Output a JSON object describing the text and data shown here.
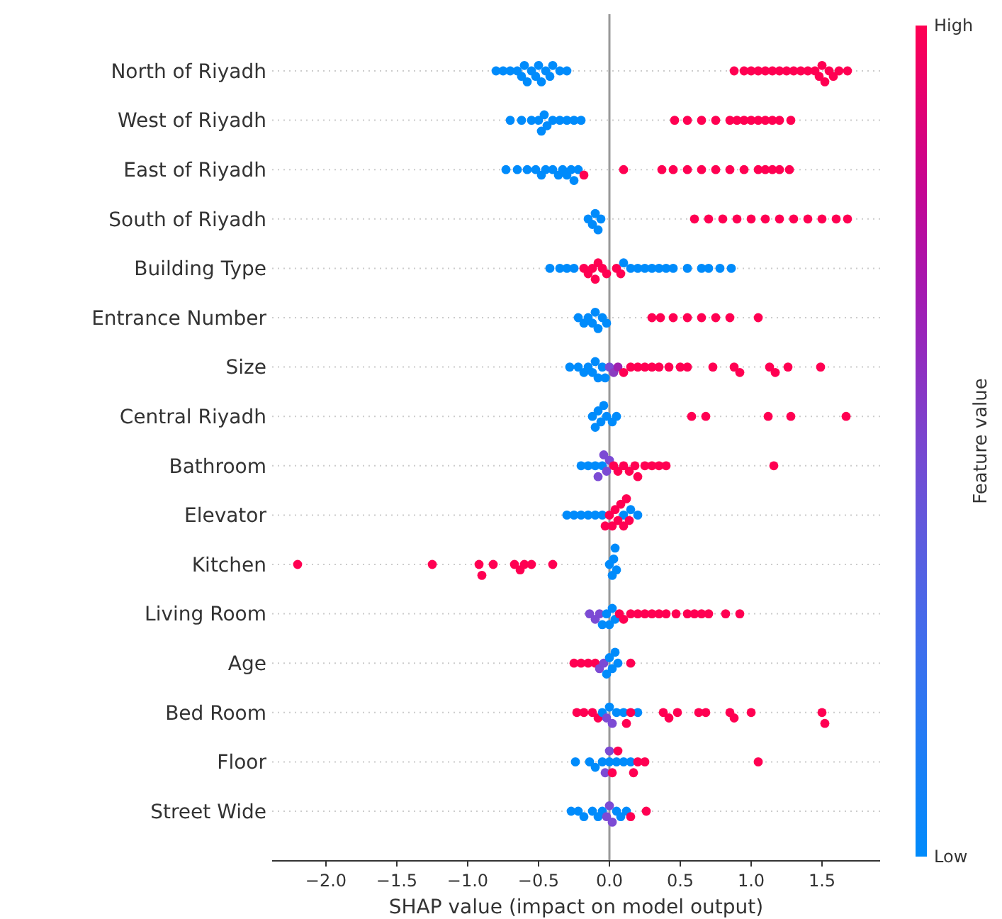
{
  "chart_data": {
    "type": "scatter",
    "orientation": "horizontal",
    "xlabel": "SHAP value (impact on model output)",
    "clabel": "Feature value",
    "categories": [
      "North of Riyadh",
      "West of Riyadh",
      "East of Riyadh",
      "South of Riyadh",
      "Building Type",
      "Entrance Number",
      "Size",
      "Central Riyadh",
      "Bathroom",
      "Elevator",
      "Kitchen",
      "Living Room",
      "Age",
      "Bed Room",
      "Floor",
      "Street Wide"
    ],
    "xlim": [
      -2.38,
      1.91
    ],
    "xticks": [
      {
        "value": -2,
        "label": "−2.0"
      },
      {
        "value": -1.5,
        "label": "−1.5"
      },
      {
        "value": -1,
        "label": "−1.0"
      },
      {
        "value": -0.5,
        "label": "−0.5"
      },
      {
        "value": 0,
        "label": "0.0"
      },
      0.5,
      {
        "value": 1,
        "label": "1.0"
      },
      1.5
    ],
    "clim": [
      0,
      1
    ],
    "cticks": [
      {
        "value": 0,
        "label": "Low"
      },
      {
        "value": 1,
        "label": "High"
      }
    ],
    "grid": "y",
    "marker": "circle",
    "ref_lines": [
      {
        "axis": "x",
        "value": 0,
        "color": "#999999"
      }
    ],
    "series": [
      {
        "x": [
          "North of Riyadh",
          "North of Riyadh",
          "North of Riyadh",
          "North of Riyadh",
          "North of Riyadh",
          "North of Riyadh",
          "North of Riyadh",
          "North of Riyadh",
          "North of Riyadh",
          "North of Riyadh",
          "North of Riyadh",
          "North of Riyadh",
          "North of Riyadh",
          "North of Riyadh",
          "North of Riyadh",
          "North of Riyadh",
          "North of Riyadh",
          "North of Riyadh",
          "North of Riyadh",
          "North of Riyadh",
          "North of Riyadh",
          "North of Riyadh",
          "North of Riyadh",
          "North of Riyadh",
          "North of Riyadh",
          "North of Riyadh",
          "North of Riyadh",
          "North of Riyadh",
          "North of Riyadh",
          "North of Riyadh",
          "North of Riyadh",
          "North of Riyadh",
          "North of Riyadh",
          "North of Riyadh",
          "North of Riyadh"
        ],
        "values": [
          -0.8,
          -0.75,
          -0.7,
          -0.65,
          -0.62,
          -0.6,
          -0.58,
          -0.55,
          -0.52,
          -0.5,
          -0.48,
          -0.45,
          -0.42,
          -0.4,
          -0.35,
          -0.3,
          0.88,
          0.95,
          1.0,
          1.05,
          1.1,
          1.15,
          1.2,
          1.25,
          1.3,
          1.35,
          1.4,
          1.45,
          1.48,
          1.5,
          1.52,
          1.55,
          1.58,
          1.62,
          1.68
        ],
        "colors": [
          "#008bfb",
          "#008bfb",
          "#008bfb",
          "#008bfb",
          "#008bfb",
          "#008bfb",
          "#008bfb",
          "#008bfb",
          "#008bfb",
          "#008bfb",
          "#008bfb",
          "#008bfb",
          "#008bfb",
          "#008bfb",
          "#008bfb",
          "#008bfb",
          "#ff0052",
          "#ff0052",
          "#ff0052",
          "#ff0052",
          "#ff0052",
          "#ff0052",
          "#ff0052",
          "#ff0052",
          "#ff0052",
          "#ff0052",
          "#ff0052",
          "#ff0052",
          "#ff0052",
          "#ff0052",
          "#ff0052",
          "#ff0052",
          "#ff0052",
          "#ff0052",
          "#ff0052"
        ]
      },
      {
        "x": [
          "West of Riyadh",
          "West of Riyadh",
          "West of Riyadh",
          "West of Riyadh",
          "West of Riyadh",
          "West of Riyadh",
          "West of Riyadh",
          "West of Riyadh",
          "West of Riyadh",
          "West of Riyadh",
          "West of Riyadh",
          "West of Riyadh",
          "West of Riyadh",
          "West of Riyadh",
          "West of Riyadh",
          "West of Riyadh",
          "West of Riyadh",
          "West of Riyadh",
          "West of Riyadh",
          "West of Riyadh",
          "West of Riyadh",
          "West of Riyadh",
          "West of Riyadh",
          "West of Riyadh",
          "West of Riyadh"
        ],
        "values": [
          -0.7,
          -0.62,
          -0.55,
          -0.5,
          -0.48,
          -0.46,
          -0.44,
          -0.4,
          -0.35,
          -0.3,
          -0.25,
          -0.2,
          0.46,
          0.55,
          0.65,
          0.75,
          0.85,
          0.9,
          0.95,
          1.0,
          1.05,
          1.1,
          1.15,
          1.2,
          1.28
        ],
        "colors": [
          "#008bfb",
          "#008bfb",
          "#008bfb",
          "#008bfb",
          "#008bfb",
          "#008bfb",
          "#008bfb",
          "#008bfb",
          "#008bfb",
          "#008bfb",
          "#008bfb",
          "#008bfb",
          "#ff0052",
          "#ff0052",
          "#ff0052",
          "#ff0052",
          "#ff0052",
          "#ff0052",
          "#ff0052",
          "#ff0052",
          "#ff0052",
          "#ff0052",
          "#ff0052",
          "#ff0052",
          "#ff0052"
        ]
      },
      {
        "x": [
          "East of Riyadh",
          "East of Riyadh",
          "East of Riyadh",
          "East of Riyadh",
          "East of Riyadh",
          "East of Riyadh",
          "East of Riyadh",
          "East of Riyadh",
          "East of Riyadh",
          "East of Riyadh",
          "East of Riyadh",
          "East of Riyadh",
          "East of Riyadh",
          "East of Riyadh",
          "East of Riyadh",
          "East of Riyadh",
          "East of Riyadh",
          "East of Riyadh",
          "East of Riyadh",
          "East of Riyadh",
          "East of Riyadh",
          "East of Riyadh",
          "East of Riyadh",
          "East of Riyadh",
          "East of Riyadh",
          "East of Riyadh",
          "East of Riyadh"
        ],
        "values": [
          -0.73,
          -0.65,
          -0.58,
          -0.52,
          -0.48,
          -0.45,
          -0.4,
          -0.36,
          -0.33,
          -0.3,
          -0.27,
          -0.25,
          -0.22,
          -0.18,
          0.1,
          0.37,
          0.45,
          0.55,
          0.65,
          0.75,
          0.85,
          0.95,
          1.05,
          1.1,
          1.15,
          1.2,
          1.27
        ],
        "colors": [
          "#008bfb",
          "#008bfb",
          "#008bfb",
          "#008bfb",
          "#008bfb",
          "#008bfb",
          "#008bfb",
          "#008bfb",
          "#008bfb",
          "#008bfb",
          "#008bfb",
          "#008bfb",
          "#008bfb",
          "#ff0052",
          "#ff0052",
          "#ff0052",
          "#ff0052",
          "#ff0052",
          "#ff0052",
          "#ff0052",
          "#ff0052",
          "#ff0052",
          "#ff0052",
          "#ff0052",
          "#ff0052",
          "#ff0052",
          "#ff0052"
        ]
      },
      {
        "x": [
          "South of Riyadh",
          "South of Riyadh",
          "South of Riyadh",
          "South of Riyadh",
          "South of Riyadh",
          "South of Riyadh",
          "South of Riyadh",
          "South of Riyadh",
          "South of Riyadh",
          "South of Riyadh",
          "South of Riyadh",
          "South of Riyadh",
          "South of Riyadh",
          "South of Riyadh",
          "South of Riyadh",
          "South of Riyadh",
          "South of Riyadh"
        ],
        "values": [
          -0.15,
          -0.12,
          -0.1,
          -0.08,
          -0.06,
          0.6,
          0.7,
          0.8,
          0.9,
          1.0,
          1.1,
          1.2,
          1.3,
          1.4,
          1.5,
          1.6,
          1.68
        ],
        "colors": [
          "#008bfb",
          "#008bfb",
          "#008bfb",
          "#008bfb",
          "#008bfb",
          "#ff0052",
          "#ff0052",
          "#ff0052",
          "#ff0052",
          "#ff0052",
          "#ff0052",
          "#ff0052",
          "#ff0052",
          "#ff0052",
          "#ff0052",
          "#ff0052",
          "#ff0052"
        ]
      },
      {
        "x": [
          "Building Type",
          "Building Type",
          "Building Type",
          "Building Type",
          "Building Type",
          "Building Type",
          "Building Type",
          "Building Type",
          "Building Type",
          "Building Type",
          "Building Type",
          "Building Type",
          "Building Type",
          "Building Type",
          "Building Type",
          "Building Type",
          "Building Type",
          "Building Type",
          "Building Type",
          "Building Type",
          "Building Type",
          "Building Type",
          "Building Type",
          "Building Type",
          "Building Type",
          "Building Type"
        ],
        "values": [
          -0.42,
          -0.35,
          -0.3,
          -0.25,
          -0.18,
          -0.15,
          -0.12,
          -0.1,
          -0.08,
          -0.05,
          -0.02,
          0.05,
          0.08,
          0.1,
          0.15,
          0.2,
          0.25,
          0.3,
          0.35,
          0.4,
          0.45,
          0.55,
          0.65,
          0.7,
          0.78,
          0.86
        ],
        "colors": [
          "#008bfb",
          "#008bfb",
          "#008bfb",
          "#008bfb",
          "#ff0052",
          "#ff0052",
          "#ff0052",
          "#ff0052",
          "#ff0052",
          "#ff0052",
          "#ff0052",
          "#ff0052",
          "#ff0052",
          "#008bfb",
          "#008bfb",
          "#008bfb",
          "#008bfb",
          "#008bfb",
          "#008bfb",
          "#008bfb",
          "#008bfb",
          "#008bfb",
          "#008bfb",
          "#008bfb",
          "#008bfb",
          "#008bfb"
        ]
      },
      {
        "x": [
          "Entrance Number",
          "Entrance Number",
          "Entrance Number",
          "Entrance Number",
          "Entrance Number",
          "Entrance Number",
          "Entrance Number",
          "Entrance Number",
          "Entrance Number",
          "Entrance Number",
          "Entrance Number",
          "Entrance Number",
          "Entrance Number",
          "Entrance Number",
          "Entrance Number",
          "Entrance Number"
        ],
        "values": [
          -0.22,
          -0.18,
          -0.15,
          -0.12,
          -0.1,
          -0.08,
          -0.05,
          -0.02,
          0.3,
          0.36,
          0.45,
          0.55,
          0.65,
          0.75,
          0.85,
          1.05
        ],
        "colors": [
          "#008bfb",
          "#008bfb",
          "#008bfb",
          "#008bfb",
          "#008bfb",
          "#008bfb",
          "#008bfb",
          "#008bfb",
          "#ff0052",
          "#ff0052",
          "#ff0052",
          "#ff0052",
          "#ff0052",
          "#ff0052",
          "#ff0052",
          "#ff0052"
        ]
      },
      {
        "x": [
          "Size",
          "Size",
          "Size",
          "Size",
          "Size",
          "Size",
          "Size",
          "Size",
          "Size",
          "Size",
          "Size",
          "Size",
          "Size",
          "Size",
          "Size",
          "Size",
          "Size",
          "Size",
          "Size",
          "Size",
          "Size",
          "Size",
          "Size",
          "Size",
          "Size",
          "Size",
          "Size",
          "Size"
        ],
        "values": [
          -0.28,
          -0.22,
          -0.18,
          -0.15,
          -0.12,
          -0.1,
          -0.08,
          -0.05,
          -0.03,
          0.0,
          0.03,
          0.06,
          0.1,
          0.15,
          0.2,
          0.25,
          0.3,
          0.35,
          0.42,
          0.5,
          0.55,
          0.73,
          0.88,
          0.92,
          1.13,
          1.17,
          1.26,
          1.49
        ],
        "colors": [
          "#008bfb",
          "#008bfb",
          "#008bfb",
          "#008bfb",
          "#008bfb",
          "#008bfb",
          "#008bfb",
          "#008bfb",
          "#008bfb",
          "#7c4bd4",
          "#8a3cc0",
          "#a020b0",
          "#ff0052",
          "#ff0052",
          "#ff0052",
          "#ff0052",
          "#ff0052",
          "#ff0052",
          "#ff0052",
          "#ff0052",
          "#ff0052",
          "#ff0052",
          "#ff0052",
          "#ff0052",
          "#ff0052",
          "#ff0052",
          "#ff0052",
          "#ff0052"
        ]
      },
      {
        "x": [
          "Central Riyadh",
          "Central Riyadh",
          "Central Riyadh",
          "Central Riyadh",
          "Central Riyadh",
          "Central Riyadh",
          "Central Riyadh",
          "Central Riyadh",
          "Central Riyadh",
          "Central Riyadh",
          "Central Riyadh",
          "Central Riyadh",
          "Central Riyadh"
        ],
        "values": [
          -0.12,
          -0.1,
          -0.08,
          -0.06,
          -0.04,
          -0.02,
          0.02,
          0.05,
          0.58,
          0.68,
          1.12,
          1.28,
          1.67
        ],
        "colors": [
          "#008bfb",
          "#008bfb",
          "#008bfb",
          "#008bfb",
          "#008bfb",
          "#008bfb",
          "#008bfb",
          "#008bfb",
          "#ff0052",
          "#ff0052",
          "#ff0052",
          "#ff0052",
          "#ff0052"
        ]
      },
      {
        "x": [
          "Bathroom",
          "Bathroom",
          "Bathroom",
          "Bathroom",
          "Bathroom",
          "Bathroom",
          "Bathroom",
          "Bathroom",
          "Bathroom",
          "Bathroom",
          "Bathroom",
          "Bathroom",
          "Bathroom",
          "Bathroom",
          "Bathroom",
          "Bathroom",
          "Bathroom",
          "Bathroom",
          "Bathroom"
        ],
        "values": [
          -0.2,
          -0.15,
          -0.1,
          -0.05,
          -0.08,
          -0.04,
          -0.02,
          0.0,
          0.03,
          0.06,
          0.1,
          0.14,
          0.18,
          0.2,
          0.25,
          0.3,
          0.35,
          0.4,
          1.16
        ],
        "colors": [
          "#008bfb",
          "#008bfb",
          "#008bfb",
          "#008bfb",
          "#7c4bd4",
          "#7c4bd4",
          "#7c4bd4",
          "#7c4bd4",
          "#ff0052",
          "#ff0052",
          "#ff0052",
          "#ff0052",
          "#ff0052",
          "#ff0052",
          "#ff0052",
          "#ff0052",
          "#ff0052",
          "#ff0052",
          "#ff0052"
        ]
      },
      {
        "x": [
          "Elevator",
          "Elevator",
          "Elevator",
          "Elevator",
          "Elevator",
          "Elevator",
          "Elevator",
          "Elevator",
          "Elevator",
          "Elevator",
          "Elevator",
          "Elevator",
          "Elevator",
          "Elevator",
          "Elevator",
          "Elevator",
          "Elevator",
          "Elevator"
        ],
        "values": [
          -0.3,
          -0.25,
          -0.2,
          -0.15,
          -0.1,
          -0.05,
          0.1,
          0.15,
          0.2,
          -0.03,
          0.0,
          0.02,
          0.04,
          0.06,
          0.08,
          0.1,
          0.12,
          0.14
        ],
        "colors": [
          "#008bfb",
          "#008bfb",
          "#008bfb",
          "#008bfb",
          "#008bfb",
          "#008bfb",
          "#008bfb",
          "#008bfb",
          "#008bfb",
          "#ff0052",
          "#ff0052",
          "#ff0052",
          "#ff0052",
          "#ff0052",
          "#ff0052",
          "#ff0052",
          "#ff0052",
          "#ff0052"
        ]
      },
      {
        "x": [
          "Kitchen",
          "Kitchen",
          "Kitchen",
          "Kitchen",
          "Kitchen",
          "Kitchen",
          "Kitchen",
          "Kitchen",
          "Kitchen",
          "Kitchen",
          "Kitchen",
          "Kitchen",
          "Kitchen",
          "Kitchen",
          "Kitchen"
        ],
        "values": [
          -2.2,
          -1.25,
          -0.92,
          -0.9,
          -0.82,
          -0.67,
          -0.63,
          -0.6,
          -0.55,
          -0.4,
          0.0,
          0.02,
          0.03,
          0.04,
          0.05
        ],
        "colors": [
          "#ff0052",
          "#ff0052",
          "#ff0052",
          "#ff0052",
          "#ff0052",
          "#ff0052",
          "#ff0052",
          "#ff0052",
          "#ff0052",
          "#ff0052",
          "#008bfb",
          "#008bfb",
          "#008bfb",
          "#008bfb",
          "#008bfb"
        ]
      },
      {
        "x": [
          "Living Room",
          "Living Room",
          "Living Room",
          "Living Room",
          "Living Room",
          "Living Room",
          "Living Room",
          "Living Room",
          "Living Room",
          "Living Room",
          "Living Room",
          "Living Room",
          "Living Room",
          "Living Room",
          "Living Room",
          "Living Room",
          "Living Room",
          "Living Room",
          "Living Room",
          "Living Room",
          "Living Room",
          "Living Room",
          "Living Room"
        ],
        "values": [
          -0.14,
          -0.1,
          -0.07,
          -0.05,
          -0.02,
          0.0,
          0.02,
          0.04,
          0.07,
          0.1,
          0.15,
          0.2,
          0.25,
          0.3,
          0.35,
          0.4,
          0.47,
          0.55,
          0.6,
          0.65,
          0.7,
          0.82,
          0.92
        ],
        "colors": [
          "#7c4bd4",
          "#7c4bd4",
          "#7c4bd4",
          "#008bfb",
          "#008bfb",
          "#008bfb",
          "#008bfb",
          "#008bfb",
          "#ff0052",
          "#ff0052",
          "#ff0052",
          "#ff0052",
          "#ff0052",
          "#ff0052",
          "#ff0052",
          "#ff0052",
          "#ff0052",
          "#ff0052",
          "#ff0052",
          "#ff0052",
          "#ff0052",
          "#ff0052",
          "#ff0052"
        ]
      },
      {
        "x": [
          "Age",
          "Age",
          "Age",
          "Age",
          "Age",
          "Age",
          "Age",
          "Age",
          "Age",
          "Age",
          "Age",
          "Age"
        ],
        "values": [
          -0.25,
          -0.2,
          -0.15,
          -0.1,
          -0.07,
          -0.04,
          -0.02,
          0.0,
          0.02,
          0.04,
          0.06,
          0.15
        ],
        "colors": [
          "#ff0052",
          "#ff0052",
          "#ff0052",
          "#ff0052",
          "#7c4bd4",
          "#7c4bd4",
          "#008bfb",
          "#008bfb",
          "#008bfb",
          "#008bfb",
          "#008bfb",
          "#ff0052"
        ]
      },
      {
        "x": [
          "Bed Room",
          "Bed Room",
          "Bed Room",
          "Bed Room",
          "Bed Room",
          "Bed Room",
          "Bed Room",
          "Bed Room",
          "Bed Room",
          "Bed Room",
          "Bed Room",
          "Bed Room",
          "Bed Room",
          "Bed Room",
          "Bed Room",
          "Bed Room",
          "Bed Room",
          "Bed Room",
          "Bed Room",
          "Bed Room",
          "Bed Room",
          "Bed Room",
          "Bed Room"
        ],
        "values": [
          -0.23,
          -0.18,
          -0.12,
          -0.08,
          -0.05,
          0.0,
          0.05,
          0.1,
          0.2,
          -0.02,
          0.02,
          0.12,
          0.15,
          0.38,
          0.42,
          0.48,
          0.63,
          0.68,
          0.85,
          0.88,
          1.0,
          1.5,
          1.52
        ],
        "colors": [
          "#ff0052",
          "#ff0052",
          "#ff0052",
          "#ff0052",
          "#008bfb",
          "#008bfb",
          "#008bfb",
          "#008bfb",
          "#008bfb",
          "#7c4bd4",
          "#7c4bd4",
          "#ff0052",
          "#ff0052",
          "#ff0052",
          "#ff0052",
          "#ff0052",
          "#ff0052",
          "#ff0052",
          "#ff0052",
          "#ff0052",
          "#ff0052",
          "#ff0052",
          "#ff0052"
        ]
      },
      {
        "x": [
          "Floor",
          "Floor",
          "Floor",
          "Floor",
          "Floor",
          "Floor",
          "Floor",
          "Floor",
          "Floor",
          "Floor",
          "Floor",
          "Floor",
          "Floor",
          "Floor",
          "Floor",
          "Floor"
        ],
        "values": [
          -0.24,
          -0.14,
          -0.1,
          -0.05,
          0.0,
          0.05,
          0.1,
          0.15,
          -0.03,
          0.0,
          0.02,
          0.06,
          0.17,
          0.2,
          0.25,
          1.05
        ],
        "colors": [
          "#008bfb",
          "#008bfb",
          "#008bfb",
          "#008bfb",
          "#008bfb",
          "#008bfb",
          "#008bfb",
          "#008bfb",
          "#7c4bd4",
          "#7c4bd4",
          "#ff0052",
          "#ff0052",
          "#ff0052",
          "#ff0052",
          "#ff0052",
          "#ff0052"
        ]
      },
      {
        "x": [
          "Street Wide",
          "Street Wide",
          "Street Wide",
          "Street Wide",
          "Street Wide",
          "Street Wide",
          "Street Wide",
          "Street Wide",
          "Street Wide",
          "Street Wide",
          "Street Wide",
          "Street Wide",
          "Street Wide",
          "Street Wide"
        ],
        "values": [
          -0.27,
          -0.22,
          -0.18,
          -0.12,
          -0.08,
          -0.05,
          0.05,
          0.08,
          0.12,
          -0.02,
          0.0,
          0.02,
          0.15,
          0.26
        ],
        "colors": [
          "#008bfb",
          "#008bfb",
          "#008bfb",
          "#008bfb",
          "#008bfb",
          "#008bfb",
          "#008bfb",
          "#008bfb",
          "#008bfb",
          "#7c4bd4",
          "#7c4bd4",
          "#7c4bd4",
          "#ff0052",
          "#ff0052"
        ]
      }
    ]
  }
}
